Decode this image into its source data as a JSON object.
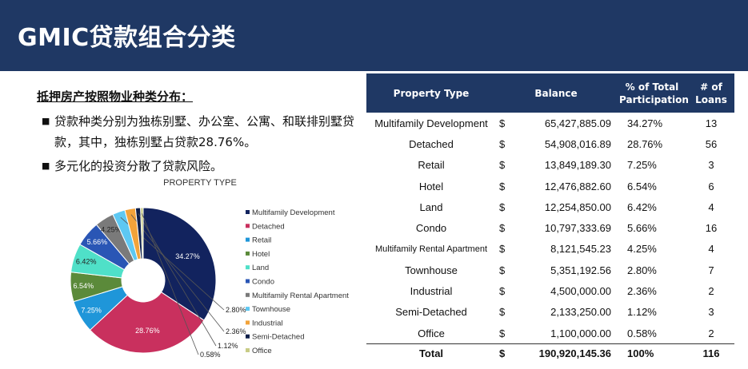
{
  "header": {
    "title": "GMIC贷款组合分类"
  },
  "text": {
    "subheading": "抵押房产按照物业种类分布：",
    "bullets": [
      "贷款种类分别为独栋别墅、办公室、公寓、和联排别墅贷款，其中，独栋别墅占贷款28.76%。",
      "多元化的投资分散了贷款风险。"
    ],
    "bullet_symbol": "■"
  },
  "chart_data": {
    "type": "pie",
    "title": "PROPERTY TYPE",
    "categories": [
      "Multifamily Development",
      "Detached",
      "Retail",
      "Hotel",
      "Land",
      "Condo",
      "Multifamily Rental Apartment",
      "Townhouse",
      "Industrial",
      "Semi-Detached",
      "Office"
    ],
    "values": [
      34.27,
      28.76,
      7.25,
      6.54,
      6.42,
      5.66,
      4.25,
      2.8,
      2.36,
      1.12,
      0.58
    ],
    "labels": [
      "34.27%",
      "28.76%",
      "7.25%",
      "6.54%",
      "6.42%",
      "5.66%",
      "4.25%",
      "2.80%",
      "2.36%",
      "1.12%",
      "0.58%"
    ],
    "colors": [
      "#12235e",
      "#c9305e",
      "#1f96d9",
      "#5b8a3a",
      "#4fe0c8",
      "#2a56b5",
      "#7a7a7a",
      "#5ec8f2",
      "#f2a33a",
      "#0e1f4a",
      "#c8cc86"
    ],
    "legend_position": "right",
    "donut": true
  },
  "table": {
    "headers": [
      "Property Type",
      "Balance",
      "% of Total Participation",
      "# of Loans"
    ],
    "currency": "$",
    "rows": [
      {
        "type": "Multifamily Development",
        "balance": "65,427,885.09",
        "pct": "34.27%",
        "loans": "13"
      },
      {
        "type": "Detached",
        "balance": "54,908,016.89",
        "pct": "28.76%",
        "loans": "56"
      },
      {
        "type": "Retail",
        "balance": "13,849,189.30",
        "pct": "7.25%",
        "loans": "3"
      },
      {
        "type": "Hotel",
        "balance": "12,476,882.60",
        "pct": "6.54%",
        "loans": "6"
      },
      {
        "type": "Land",
        "balance": "12,254,850.00",
        "pct": "6.42%",
        "loans": "4"
      },
      {
        "type": "Condo",
        "balance": "10,797,333.69",
        "pct": "5.66%",
        "loans": "16"
      },
      {
        "type": "Multifamily Rental Apartment",
        "balance": "8,121,545.23",
        "pct": "4.25%",
        "loans": "4"
      },
      {
        "type": "Townhouse",
        "balance": "5,351,192.56",
        "pct": "2.80%",
        "loans": "7"
      },
      {
        "type": "Industrial",
        "balance": "4,500,000.00",
        "pct": "2.36%",
        "loans": "2"
      },
      {
        "type": "Semi-Detached",
        "balance": "2,133,250.00",
        "pct": "1.12%",
        "loans": "3"
      },
      {
        "type": "Office",
        "balance": "1,100,000.00",
        "pct": "0.58%",
        "loans": "2"
      }
    ],
    "total": {
      "type": "Total",
      "balance": "190,920,145.36",
      "pct": "100%",
      "loans": "116"
    }
  }
}
